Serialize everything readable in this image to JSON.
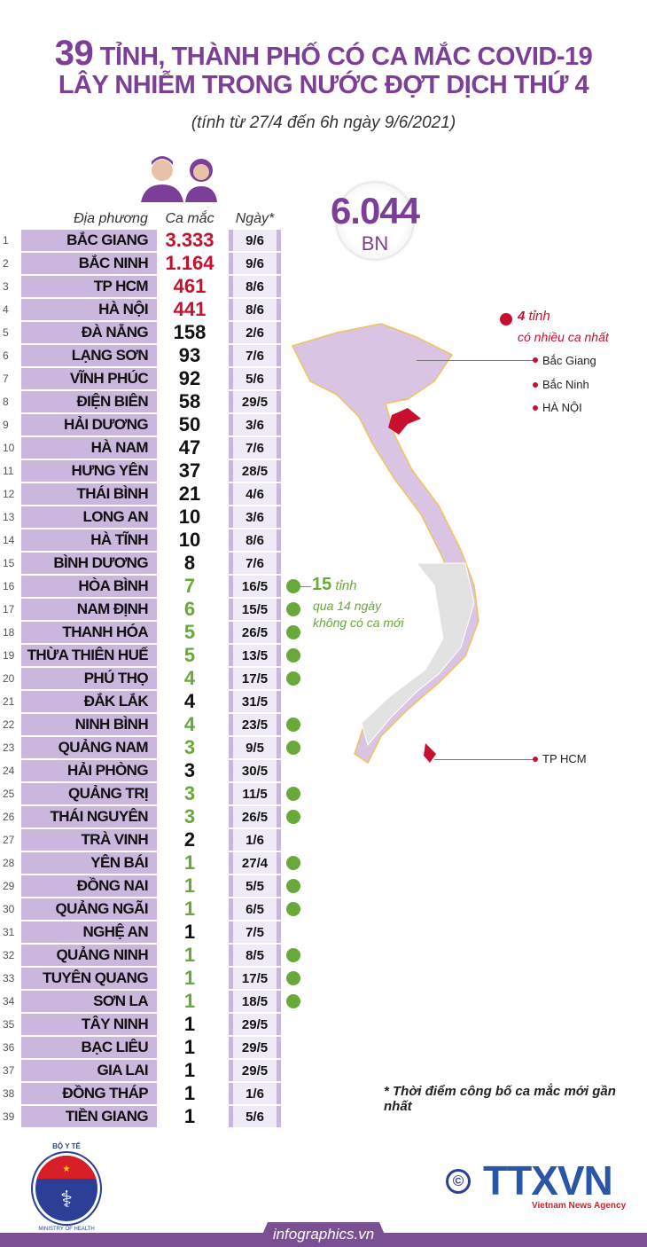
{
  "title": {
    "count": "39",
    "line1_rest": " TỈNH, THÀNH PHỐ CÓ CA MẮC COVID-19",
    "line2": "LÂY NHIỄM TRONG NƯỚC ĐỢT DỊCH THỨ 4",
    "subtitle": "(tính từ 27/4 đến 6h ngày 9/6/2021)"
  },
  "colors": {
    "brand": "#7c3f98",
    "bar": "#cbb6dd",
    "red": "#c8102e",
    "green": "#6aa83b"
  },
  "table": {
    "headers": {
      "place": "Địa phương",
      "cases": "Ca mắc",
      "date": "Ngày*"
    },
    "rows": [
      {
        "rank": "1",
        "name": "BẮC GIANG",
        "cases": "3.333",
        "date": "9/6",
        "group": "top"
      },
      {
        "rank": "2",
        "name": "BẮC NINH",
        "cases": "1.164",
        "date": "9/6",
        "group": "top"
      },
      {
        "rank": "3",
        "name": "TP HCM",
        "cases": "461",
        "date": "8/6",
        "group": "top"
      },
      {
        "rank": "4",
        "name": "HÀ NỘI",
        "cases": "441",
        "date": "8/6",
        "group": "top"
      },
      {
        "rank": "5",
        "name": "ĐÀ NẴNG",
        "cases": "158",
        "date": "2/6",
        "group": "normal"
      },
      {
        "rank": "6",
        "name": "LẠNG SƠN",
        "cases": "93",
        "date": "7/6",
        "group": "normal"
      },
      {
        "rank": "7",
        "name": "VĨNH PHÚC",
        "cases": "92",
        "date": "5/6",
        "group": "normal"
      },
      {
        "rank": "8",
        "name": "ĐIỆN BIÊN",
        "cases": "58",
        "date": "29/5",
        "group": "normal"
      },
      {
        "rank": "9",
        "name": "HẢI DƯƠNG",
        "cases": "50",
        "date": "3/6",
        "group": "normal"
      },
      {
        "rank": "10",
        "name": "HÀ NAM",
        "cases": "47",
        "date": "7/6",
        "group": "normal"
      },
      {
        "rank": "11",
        "name": "HƯNG YÊN",
        "cases": "37",
        "date": "28/5",
        "group": "normal"
      },
      {
        "rank": "12",
        "name": "THÁI BÌNH",
        "cases": "21",
        "date": "4/6",
        "group": "normal"
      },
      {
        "rank": "13",
        "name": "LONG AN",
        "cases": "10",
        "date": "3/6",
        "group": "normal"
      },
      {
        "rank": "14",
        "name": "HÀ TĨNH",
        "cases": "10",
        "date": "8/6",
        "group": "normal"
      },
      {
        "rank": "15",
        "name": "BÌNH DƯƠNG",
        "cases": "8",
        "date": "7/6",
        "group": "normal"
      },
      {
        "rank": "16",
        "name": "HÒA BÌNH",
        "cases": "7",
        "date": "16/5",
        "group": "no-new"
      },
      {
        "rank": "17",
        "name": "NAM ĐỊNH",
        "cases": "6",
        "date": "15/5",
        "group": "no-new"
      },
      {
        "rank": "18",
        "name": "THANH HÓA",
        "cases": "5",
        "date": "26/5",
        "group": "no-new"
      },
      {
        "rank": "19",
        "name": "THỪA THIÊN HUẾ",
        "cases": "5",
        "date": "13/5",
        "group": "no-new"
      },
      {
        "rank": "20",
        "name": "PHÚ THỌ",
        "cases": "4",
        "date": "17/5",
        "group": "no-new"
      },
      {
        "rank": "21",
        "name": "ĐẮK LẮK",
        "cases": "4",
        "date": "31/5",
        "group": "normal"
      },
      {
        "rank": "22",
        "name": "NINH BÌNH",
        "cases": "4",
        "date": "23/5",
        "group": "no-new"
      },
      {
        "rank": "23",
        "name": "QUẢNG NAM",
        "cases": "3",
        "date": "9/5",
        "group": "no-new"
      },
      {
        "rank": "24",
        "name": "HẢI PHÒNG",
        "cases": "3",
        "date": "30/5",
        "group": "normal"
      },
      {
        "rank": "25",
        "name": "QUẢNG TRỊ",
        "cases": "3",
        "date": "11/5",
        "group": "no-new"
      },
      {
        "rank": "26",
        "name": "THÁI NGUYÊN",
        "cases": "3",
        "date": "26/5",
        "group": "no-new"
      },
      {
        "rank": "27",
        "name": "TRÀ VINH",
        "cases": "2",
        "date": "1/6",
        "group": "normal"
      },
      {
        "rank": "28",
        "name": "YÊN BÁI",
        "cases": "1",
        "date": "27/4",
        "group": "no-new"
      },
      {
        "rank": "29",
        "name": "ĐỒNG NAI",
        "cases": "1",
        "date": "5/5",
        "group": "no-new"
      },
      {
        "rank": "30",
        "name": "QUẢNG NGÃI",
        "cases": "1",
        "date": "6/5",
        "group": "no-new"
      },
      {
        "rank": "31",
        "name": "NGHỆ AN",
        "cases": "1",
        "date": "7/5",
        "group": "normal"
      },
      {
        "rank": "32",
        "name": "QUẢNG NINH",
        "cases": "1",
        "date": "8/5",
        "group": "no-new"
      },
      {
        "rank": "33",
        "name": "TUYÊN QUANG",
        "cases": "1",
        "date": "17/5",
        "group": "no-new"
      },
      {
        "rank": "34",
        "name": "SƠN LA",
        "cases": "1",
        "date": "18/5",
        "group": "no-new"
      },
      {
        "rank": "35",
        "name": "TÂY NINH",
        "cases": "1",
        "date": "29/5",
        "group": "normal"
      },
      {
        "rank": "36",
        "name": "BẠC LIÊU",
        "cases": "1",
        "date": "29/5",
        "group": "normal"
      },
      {
        "rank": "37",
        "name": "GIA LAI",
        "cases": "1",
        "date": "29/5",
        "group": "normal"
      },
      {
        "rank": "38",
        "name": "ĐỒNG THÁP",
        "cases": "1",
        "date": "1/6",
        "group": "normal"
      },
      {
        "rank": "39",
        "name": "TIỀN GIANG",
        "cases": "1",
        "date": "5/6",
        "group": "normal"
      }
    ]
  },
  "total": {
    "value": "6.044",
    "unit": "BN"
  },
  "map": {
    "legend_top": {
      "count": "4",
      "word": " tỉnh",
      "desc": "có nhiều ca nhất"
    },
    "labels": [
      "Bắc Giang",
      "Bắc Ninh",
      "HÀ NỘI",
      "TP HCM"
    ],
    "legend_green": {
      "count": "15",
      "word": " tỉnh",
      "desc1": "qua 14 ngày",
      "desc2": "không có ca mới"
    }
  },
  "footnote": "* Thời điểm công bố ca mắc mới gần nhất",
  "logos": {
    "moh_top": "BỘ Y TẾ",
    "moh_bottom": "MINISTRY OF HEALTH",
    "copyright": "©",
    "ttxvn": "TTXVN",
    "ttxvn_sub": "Vietnam News Agency"
  },
  "footer": "infographics.vn"
}
